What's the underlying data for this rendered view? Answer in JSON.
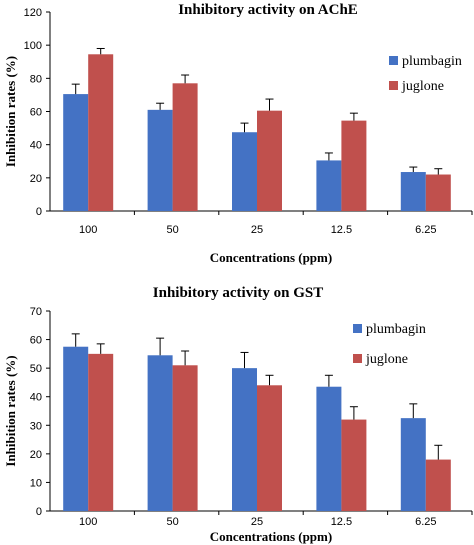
{
  "chart_data": [
    {
      "type": "bar",
      "title": "Inhibitory activity on AChE",
      "xlabel": "Concentrations (ppm)",
      "ylabel": "Inhibition rates (%)",
      "categories": [
        "100",
        "50",
        "25",
        "12.5",
        "6.25"
      ],
      "ylim": [
        0,
        120
      ],
      "yticks": [
        "0",
        "20",
        "40",
        "60",
        "80",
        "100",
        "120"
      ],
      "grid": false,
      "legend_position": "right",
      "series": [
        {
          "name": "plumbagin",
          "color": "#4472c4",
          "values": [
            70.5,
            61,
            47.5,
            30.5,
            23.5
          ],
          "errors": [
            6,
            4,
            5.5,
            4.5,
            3
          ]
        },
        {
          "name": "juglone",
          "color": "#c0504d",
          "values": [
            94.5,
            77,
            60.5,
            54.5,
            22
          ],
          "errors": [
            3.5,
            5,
            7,
            4.5,
            3.5
          ]
        }
      ]
    },
    {
      "type": "bar",
      "title": "Inhibitory activity on GST",
      "xlabel": "Concentrations (ppm)",
      "ylabel": "Inhibition rates (%)",
      "categories": [
        "100",
        "50",
        "25",
        "12.5",
        "6.25"
      ],
      "ylim": [
        0,
        70
      ],
      "yticks": [
        "0",
        "10",
        "20",
        "30",
        "40",
        "50",
        "60",
        "70"
      ],
      "grid": false,
      "legend_position": "right",
      "series": [
        {
          "name": "plumbagin",
          "color": "#4472c4",
          "values": [
            57.5,
            54.5,
            50,
            43.5,
            32.5
          ],
          "errors": [
            4.5,
            6,
            5.5,
            4,
            5
          ]
        },
        {
          "name": "juglone",
          "color": "#c0504d",
          "values": [
            55,
            51,
            44,
            32,
            18
          ],
          "errors": [
            3.5,
            5,
            3.5,
            4.5,
            5
          ]
        }
      ]
    }
  ]
}
